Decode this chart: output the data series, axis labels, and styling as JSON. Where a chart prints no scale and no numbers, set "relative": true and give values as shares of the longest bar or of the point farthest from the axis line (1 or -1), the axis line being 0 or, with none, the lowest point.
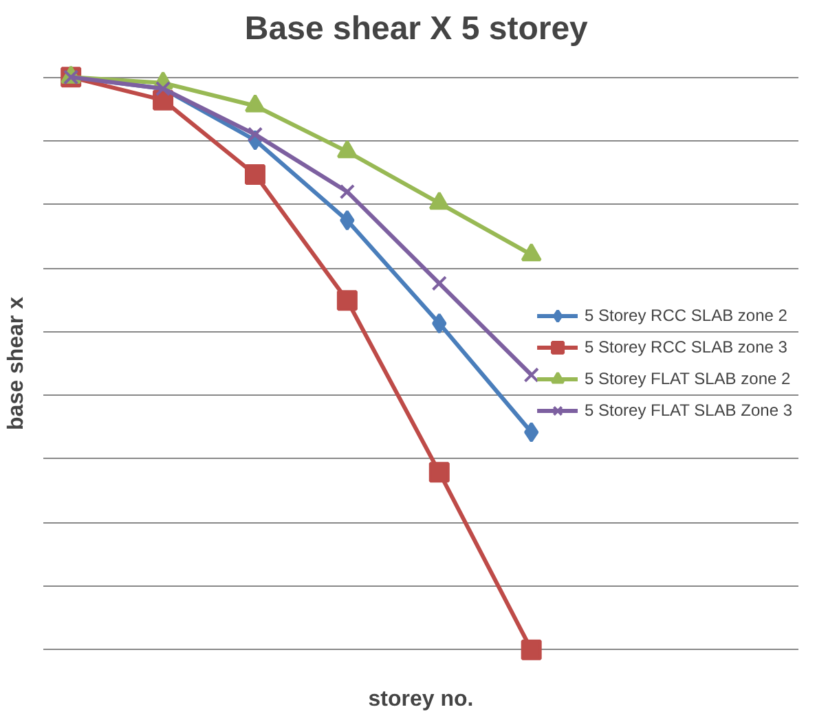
{
  "chart_data": {
    "type": "line",
    "title": "Base shear X  5 storey",
    "xlabel": "storey no.",
    "ylabel": "base shear x",
    "relative": true,
    "categories": [
      null,
      null,
      null,
      null,
      null,
      null
    ],
    "grid": "y",
    "legend": "right",
    "series": [
      {
        "name": "5 Storey RCC SLAB zone 2",
        "color": "#4a7ebb",
        "marker": "diamond",
        "values": [
          1,
          0.98,
          0.89,
          0.75,
          0.57,
          0.38
        ]
      },
      {
        "name": "5 Storey RCC SLAB zone 3",
        "color": "#be4b48",
        "marker": "square",
        "values": [
          1,
          0.96,
          0.83,
          0.61,
          0.31,
          0
        ]
      },
      {
        "name": "5 Storey FLAT SLAB zone 2",
        "color": "#98b954",
        "marker": "triangle",
        "values": [
          1,
          0.99,
          0.95,
          0.87,
          0.78,
          0.69
        ]
      },
      {
        "name": "5 Storey FLAT SLAB Zone 3",
        "color": "#7d60a0",
        "marker": "cross",
        "values": [
          1,
          0.98,
          0.9,
          0.8,
          0.64,
          0.48
        ]
      }
    ]
  }
}
